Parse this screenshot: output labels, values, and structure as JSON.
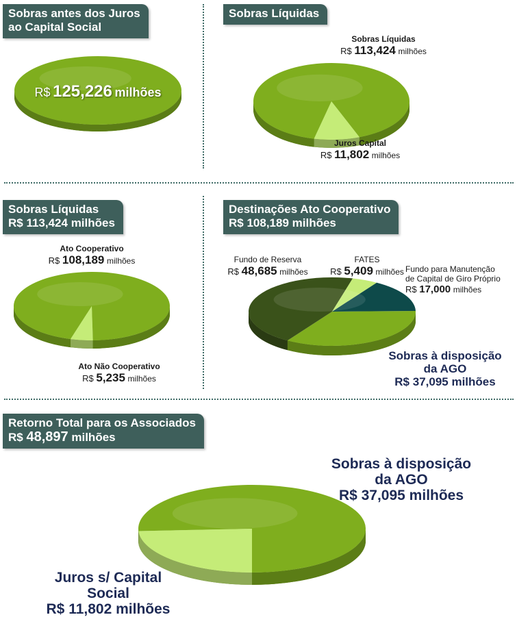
{
  "colors": {
    "header_bg": "#3e5f5b",
    "green_main": "#7fae1e",
    "green_light": "#c5ec78",
    "green_dark": "#3a521a",
    "teal_dark": "#0e4a4a",
    "navy_text": "#1d2a55"
  },
  "panel1": {
    "title_line1": "Sobras antes dos Juros",
    "title_line2": "ao Capital Social",
    "center_prefix": "R$",
    "center_value": "125,226",
    "center_unit": "milhões"
  },
  "panel2": {
    "title": "Sobras Líquidas",
    "label_a_title": "Sobras Líquidas",
    "label_a_prefix": "R$",
    "label_a_value": "113,424",
    "label_a_unit": "milhões",
    "label_b_title": "Juros Capital",
    "label_b_prefix": "R$",
    "label_b_value": "11,802",
    "label_b_unit": "milhões"
  },
  "panel3": {
    "title_line1": "Sobras Líquidas",
    "title_line2": "R$ 113,424 milhões",
    "label_a_title": "Ato Cooperativo",
    "label_a_prefix": "R$",
    "label_a_value": "108,189",
    "label_a_unit": "milhões",
    "label_b_title": "Ato Não Cooperativo",
    "label_b_prefix": "R$",
    "label_b_value": "5,235",
    "label_b_unit": "milhões"
  },
  "panel4": {
    "title_line1": "Destinações Ato Cooperativo",
    "title_line2": "R$ 108,189 milhões",
    "fundo_title": "Fundo de Reserva",
    "fundo_prefix": "R$",
    "fundo_value": "48,685",
    "fundo_unit": "milhões",
    "fates_title": "FATES",
    "fates_prefix": "R$",
    "fates_value": "5,409",
    "fates_unit": "milhões",
    "giro_title_line1": "Fundo para Manutenção",
    "giro_title_line2": "de Capital de Giro Próprio",
    "giro_prefix": "R$",
    "giro_value": "17,000",
    "giro_unit": "milhões",
    "ago_line1": "Sobras à disposição",
    "ago_line2": "da AGO",
    "ago_line3": "R$ 37,095 milhões"
  },
  "panel5": {
    "title_line1": "Retorno Total para os Associados",
    "title_prefix": "R$",
    "title_value": "48,897",
    "title_unit": "milhões",
    "ago_line1": "Sobras à disposição",
    "ago_line2": "da AGO",
    "ago_line3": "R$ 37,095 milhões",
    "juros_line1": "Juros s/ Capital",
    "juros_line2": "Social",
    "juros_line3": "R$ 11,802 milhões"
  },
  "chart_data": [
    {
      "type": "pie",
      "categories": [
        "Sobras antes dos Juros ao Capital Social"
      ],
      "values": [
        125.226
      ]
    },
    {
      "type": "pie",
      "categories": [
        "Sobras Líquidas",
        "Juros Capital"
      ],
      "values": [
        113.424,
        11.802
      ]
    },
    {
      "type": "pie",
      "categories": [
        "Ato Cooperativo",
        "Ato Não Cooperativo"
      ],
      "values": [
        108.189,
        5.235
      ]
    },
    {
      "type": "pie",
      "categories": [
        "Fundo de Reserva",
        "FATES",
        "Fundo para Manutenção de Capital de Giro Próprio",
        "Sobras à disposição da AGO"
      ],
      "values": [
        48.685,
        5.409,
        17.0,
        37.095
      ]
    },
    {
      "type": "pie",
      "categories": [
        "Sobras à disposição da AGO",
        "Juros s/ Capital Social"
      ],
      "values": [
        37.095,
        11.802
      ]
    }
  ]
}
